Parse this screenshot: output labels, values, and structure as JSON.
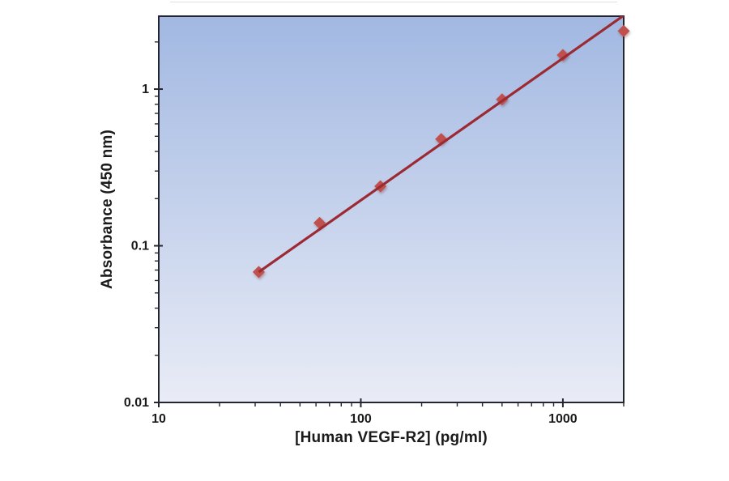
{
  "chart_data": {
    "type": "scatter",
    "title": "",
    "xlabel": "[Human VEGF-R2] (pg/ml)",
    "ylabel": "Absorbance (450 nm)",
    "x_scale": "log",
    "y_scale": "log",
    "xlim": [
      10,
      2000
    ],
    "ylim": [
      0.01,
      2.92
    ],
    "grid": false,
    "legend": "none",
    "x_ticks": [
      {
        "value": 10,
        "label": "10"
      },
      {
        "value": 100,
        "label": "100"
      },
      {
        "value": 1000,
        "label": "1000"
      }
    ],
    "y_ticks": [
      {
        "value": 0.01,
        "label": "0.01"
      },
      {
        "value": 0.1,
        "label": "0.1"
      },
      {
        "value": 1,
        "label": "1"
      }
    ],
    "series": [
      {
        "name": "standard curve data points",
        "type": "scatter",
        "marker": "diamond",
        "color": "#c0504d",
        "x": [
          31.25,
          62.5,
          125,
          250,
          500,
          1000,
          2000
        ],
        "y": [
          0.068,
          0.14,
          0.24,
          0.48,
          0.86,
          1.65,
          2.35
        ]
      },
      {
        "name": "trend line",
        "type": "line",
        "color": "#9b2a33",
        "x": [
          31.25,
          2000
        ],
        "y": [
          0.068,
          2.95
        ]
      }
    ],
    "colors": {
      "plot_bg_gradient_top": "#a2b8e2",
      "plot_bg_gradient_bottom": "#e9ecf6",
      "axis": "#23262e",
      "text": "#1a1a1a",
      "marker": "#c0504d",
      "trendline": "#9b2a33"
    }
  }
}
